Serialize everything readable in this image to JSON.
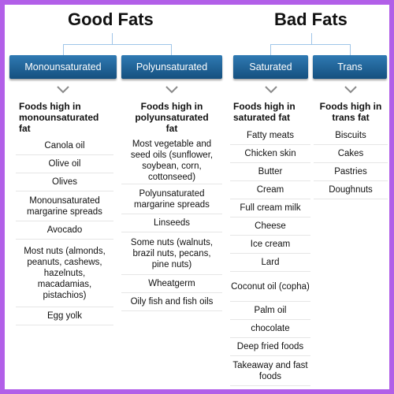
{
  "headings": {
    "good": "Good Fats",
    "bad": "Bad Fats"
  },
  "columns": [
    {
      "tab": "Monounsaturated",
      "header": "Foods high in\nmonounsaturated\nfat",
      "items": [
        "Canola oil",
        "Olive oil",
        "Olives",
        "Monounsaturated margarine spreads",
        "Avocado",
        "Most nuts (almonds, peanuts, cashews, hazelnuts, macadamias, pistachios)",
        "Egg yolk"
      ]
    },
    {
      "tab": "Polyunsaturated",
      "header": "Foods high in\npolyunsaturated\nfat",
      "items": [
        "Most vegetable and seed oils (sunflower, soybean, corn, cottonseed)",
        "Polyunsaturated margarine spreads",
        "Linseeds",
        "Some nuts (walnuts, brazil nuts, pecans, pine nuts)",
        "Wheatgerm",
        "Oily fish and fish oils"
      ]
    },
    {
      "tab": "Saturated",
      "header": "Foods high in\nsaturated fat",
      "items": [
        "Fatty meats",
        "Chicken skin",
        "Butter",
        "Cream",
        "Full cream milk",
        "Cheese",
        "Ice cream",
        "Lard",
        "Coconut oil (copha)",
        "Palm oil",
        "chocolate",
        "Deep fried foods",
        "Takeaway and fast foods"
      ]
    },
    {
      "tab": "Trans",
      "header": "Foods high in\ntrans fat",
      "items": [
        "Biscuits",
        "Cakes",
        "Pastries",
        "Doughnuts"
      ]
    }
  ],
  "colors": {
    "border": "#b25fe8",
    "tab_top": "#2f7ab3",
    "tab_bottom": "#15507f",
    "connector": "#9fc5e8"
  }
}
